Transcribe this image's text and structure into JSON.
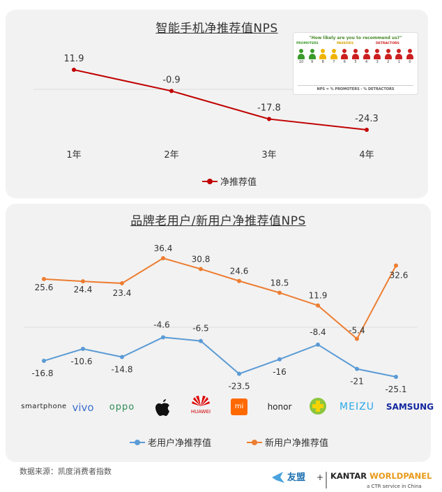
{
  "chart_data": [
    {
      "type": "line",
      "title": "智能手机净推荐值NPS",
      "categories": [
        "1年",
        "2年",
        "3年",
        "4年"
      ],
      "series": [
        {
          "name": "净推荐值",
          "values": [
            11.9,
            -0.9,
            -17.8,
            -24.3
          ],
          "color": "#c00000"
        }
      ],
      "grid": false,
      "legend_position": "bottom"
    },
    {
      "type": "line",
      "title": "品牌老用户/新用户净推荐值NPS",
      "categories": [
        "smartphone",
        "vivo",
        "OPPO",
        "Apple",
        "HUAWEI",
        "MI",
        "honor",
        "Coolpad",
        "MEIZU",
        "SAMSUNG"
      ],
      "series": [
        {
          "name": "老用户净推荐值",
          "values": [
            -16.8,
            -10.6,
            -14.8,
            -4.6,
            -6.5,
            -23.5,
            -16,
            -8.4,
            -21,
            -25.1
          ],
          "color": "#5b9bd5"
        },
        {
          "name": "新用户净推荐值",
          "values": [
            25.6,
            24.4,
            23.4,
            36.4,
            30.8,
            24.6,
            18.5,
            11.9,
            -5.4,
            32.6
          ],
          "color": "#ed7d31"
        }
      ],
      "grid": false,
      "legend_position": "bottom"
    }
  ],
  "nps_card": {
    "question": "\"How likely are you to recommend us?\"",
    "promoters": "PROMOTERS",
    "passives": "PASSIVES",
    "detractors": "DETRACTORS",
    "scores": [
      "10",
      "9",
      "8",
      "7",
      "6",
      "5",
      "4",
      "3",
      "2",
      "1",
      "0"
    ],
    "formula": "NPS = % PROMOTERS - % DETRACTORS",
    "colors": {
      "promoter": "#3a9a2a",
      "passive": "#f0b400",
      "detractor": "#cc1f1f"
    }
  },
  "brand_labels": [
    "smartphone",
    "vivo",
    "oppo",
    "",
    "HUAWEI",
    "mi",
    "honor",
    "",
    "MEIZU",
    "SAMSUNG"
  ],
  "footer": {
    "source": "数据来源：凯度消费者指数",
    "logo1": "友盟",
    "plus": "+",
    "logo2_a": "KANTAR ",
    "logo2_b": "WORLDPANEL",
    "logo2_sub": "a CTR service in China"
  }
}
